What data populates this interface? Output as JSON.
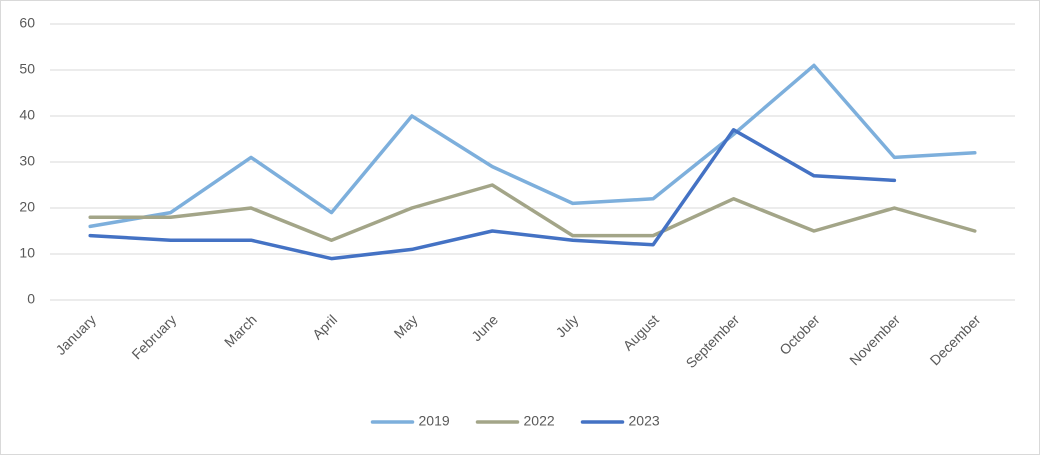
{
  "chart_data": {
    "type": "line",
    "categories": [
      "January",
      "February",
      "March",
      "April",
      "May",
      "June",
      "July",
      "August",
      "September",
      "October",
      "November",
      "December"
    ],
    "series": [
      {
        "name": "2019",
        "color": "#7dafdc",
        "values": [
          16,
          19,
          31,
          19,
          40,
          29,
          21,
          22,
          36,
          51,
          31,
          32
        ]
      },
      {
        "name": "2022",
        "color": "#a3a588",
        "values": [
          18,
          18,
          20,
          13,
          20,
          25,
          14,
          14,
          22,
          15,
          20,
          15
        ]
      },
      {
        "name": "2023",
        "color": "#4472c4",
        "values": [
          14,
          13,
          13,
          9,
          11,
          15,
          13,
          12,
          37,
          27,
          26,
          null
        ]
      }
    ],
    "ylim": [
      0,
      60
    ],
    "yticks": [
      0,
      10,
      20,
      30,
      40,
      50,
      60
    ],
    "grid": true,
    "legend": "bottom"
  }
}
